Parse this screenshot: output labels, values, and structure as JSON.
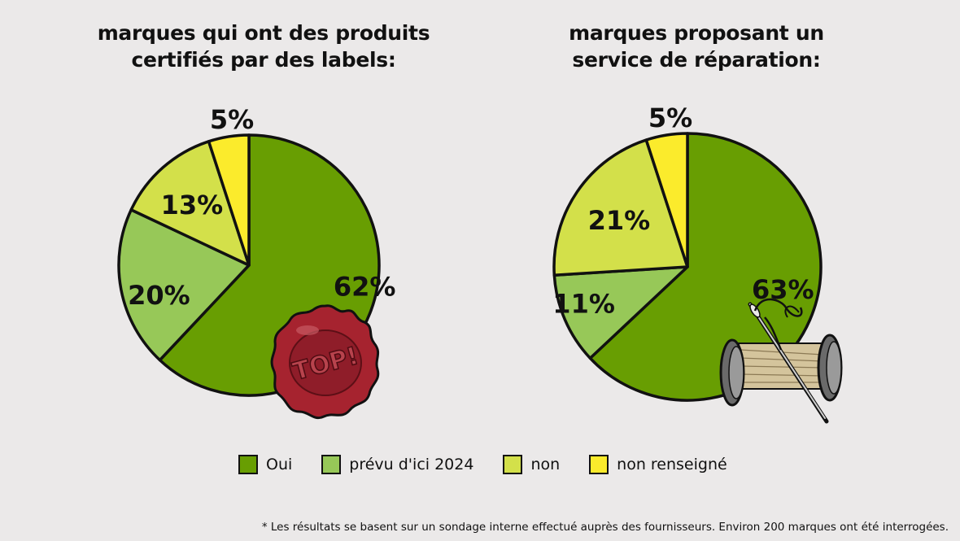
{
  "colors": {
    "Oui": "#689e02",
    "prévu d'ici 2024": "#97c858",
    "non": "#d3e04a",
    "non renseigné": "#fbeb2c",
    "outline": "#111111"
  },
  "chart_data": [
    {
      "type": "pie",
      "title": "marques qui ont des produits certifiés par des labels:",
      "title_lines": [
        "marques qui ont des produits",
        "certifiés par des labels:"
      ],
      "categories": [
        "Oui",
        "prévu d'ici 2024",
        "non",
        "non renseigné"
      ],
      "values": [
        62,
        20,
        13,
        5
      ],
      "labels": [
        "62%",
        "20%",
        "13%",
        "5%"
      ],
      "decoration": "wax-seal-icon",
      "decoration_text": "TOP!"
    },
    {
      "type": "pie",
      "title": "marques proposant un service de réparation:",
      "title_lines": [
        "marques proposant un",
        "service de réparation:"
      ],
      "categories": [
        "Oui",
        "prévu d'ici 2024",
        "non",
        "non renseigné"
      ],
      "values": [
        63,
        11,
        21,
        5
      ],
      "labels": [
        "63%",
        "11%",
        "21%",
        "5%"
      ],
      "decoration": "thread-spool-needle-icon"
    }
  ],
  "legend": [
    {
      "label": "Oui",
      "color": "#689e02"
    },
    {
      "label": "prévu d'ici 2024",
      "color": "#97c858"
    },
    {
      "label": "non",
      "color": "#d3e04a"
    },
    {
      "label": "non renseigné",
      "color": "#fbeb2c"
    }
  ],
  "footnote": "* Les résultats se basent sur un sondage interne effectué auprès des fournisseurs. Environ 200 marques ont été interrogées."
}
